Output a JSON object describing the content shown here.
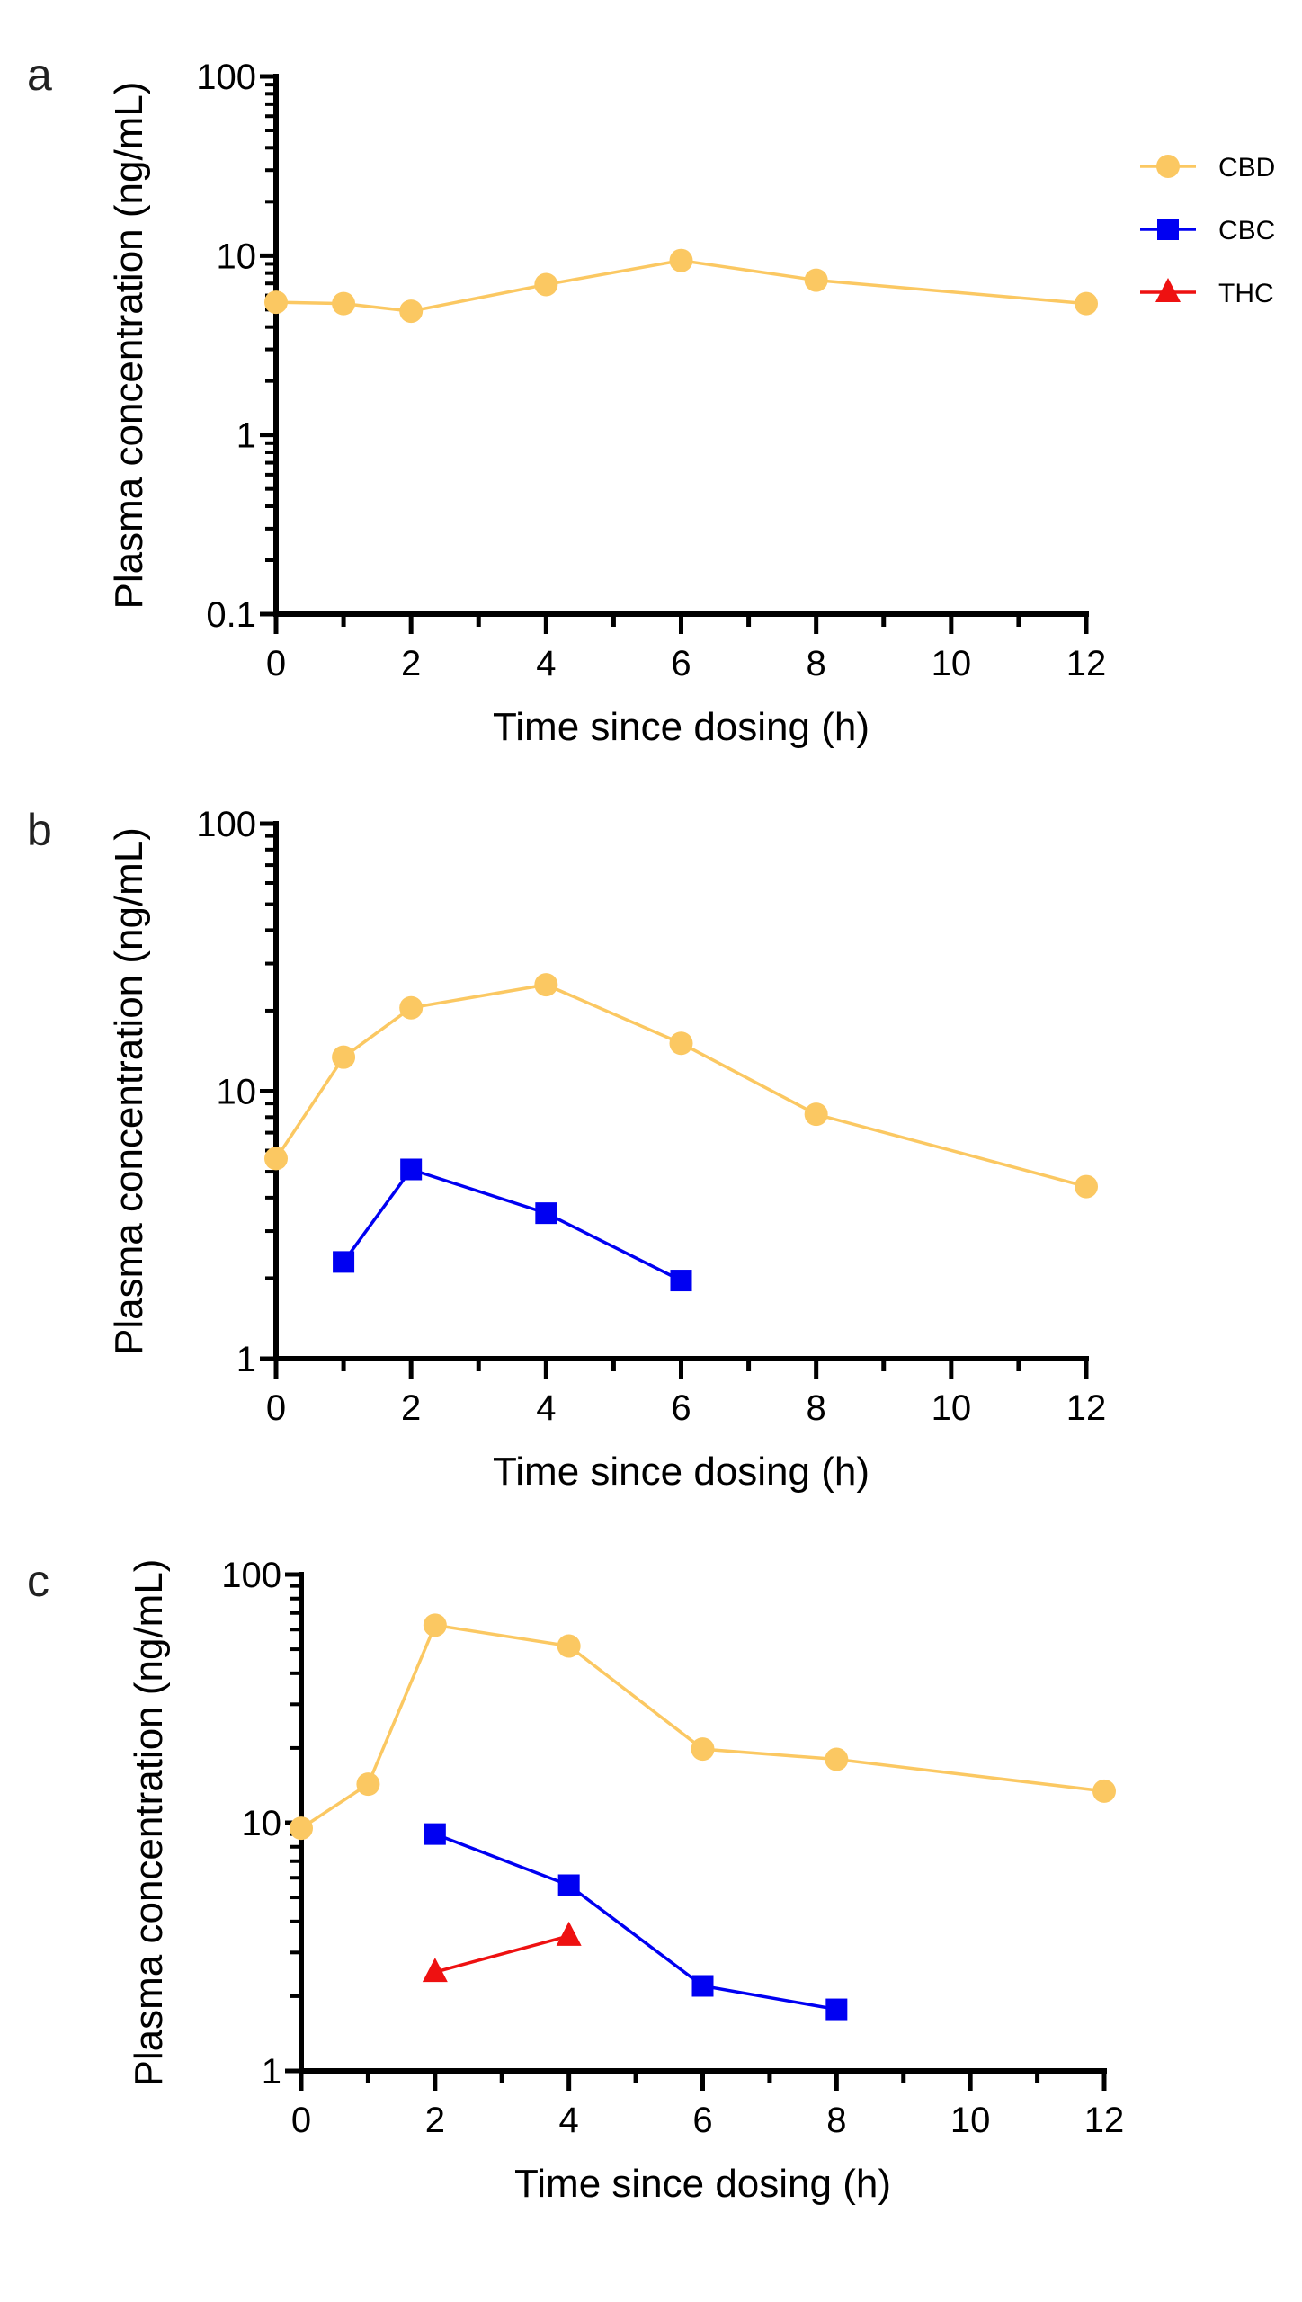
{
  "legend": {
    "position": "top-right",
    "entries": [
      {
        "name": "CBD",
        "marker": "circle",
        "color": "#FBC862"
      },
      {
        "name": "CBC",
        "marker": "square",
        "color": "#0000F2"
      },
      {
        "name": "THC",
        "marker": "triangle",
        "color": "#EE1111"
      }
    ]
  },
  "chart_data": [
    {
      "type": "line",
      "panel": "a",
      "xlabel": "Time since dosing (h)",
      "ylabel": "Plasma concentration (ng/mL)",
      "xlim": [
        0,
        12
      ],
      "ylim": [
        0.1,
        100
      ],
      "yscale": "log",
      "xticks": [
        "0",
        "2",
        "4",
        "6",
        "8",
        "10",
        "12"
      ],
      "yticks": [
        "0.1",
        "1",
        "10",
        "100"
      ],
      "grid": false,
      "series": [
        {
          "name": "CBD",
          "x": [
            0,
            1,
            2,
            4,
            6,
            8,
            12
          ],
          "y": [
            5.5,
            5.4,
            4.9,
            6.9,
            9.4,
            7.3,
            5.4
          ]
        }
      ]
    },
    {
      "type": "line",
      "panel": "b",
      "xlabel": "Time since dosing (h)",
      "ylabel": "Plasma concentration (ng/mL)",
      "xlim": [
        0,
        12
      ],
      "ylim": [
        1,
        100
      ],
      "yscale": "log",
      "xticks": [
        "0",
        "2",
        "4",
        "6",
        "8",
        "10",
        "12"
      ],
      "yticks": [
        "1",
        "10",
        "100"
      ],
      "grid": false,
      "series": [
        {
          "name": "CBD",
          "x": [
            0,
            1,
            2,
            4,
            6,
            8,
            12
          ],
          "y": [
            5.6,
            13.4,
            20.5,
            25,
            15.1,
            8.2,
            4.4
          ]
        },
        {
          "name": "CBC",
          "x": [
            1,
            2,
            4,
            6
          ],
          "y": [
            2.3,
            5.1,
            3.5,
            1.96
          ]
        }
      ]
    },
    {
      "type": "line",
      "panel": "c",
      "xlabel": "Time since dosing (h)",
      "ylabel": "Plasma concentration (ng/mL)",
      "xlim": [
        0,
        12
      ],
      "ylim": [
        1,
        100
      ],
      "yscale": "log",
      "xticks": [
        "0",
        "2",
        "4",
        "6",
        "8",
        "10",
        "12"
      ],
      "yticks": [
        "1",
        "10",
        "100"
      ],
      "grid": false,
      "series": [
        {
          "name": "CBD",
          "x": [
            0,
            1,
            2,
            4,
            6,
            8,
            12
          ],
          "y": [
            9.5,
            14.3,
            62.5,
            51.5,
            19.8,
            18.0,
            13.4
          ]
        },
        {
          "name": "CBC",
          "x": [
            2,
            4,
            6,
            8
          ],
          "y": [
            9.0,
            5.6,
            2.2,
            1.77
          ]
        },
        {
          "name": "THC",
          "x": [
            2,
            4
          ],
          "y": [
            2.5,
            3.5
          ]
        }
      ]
    }
  ]
}
